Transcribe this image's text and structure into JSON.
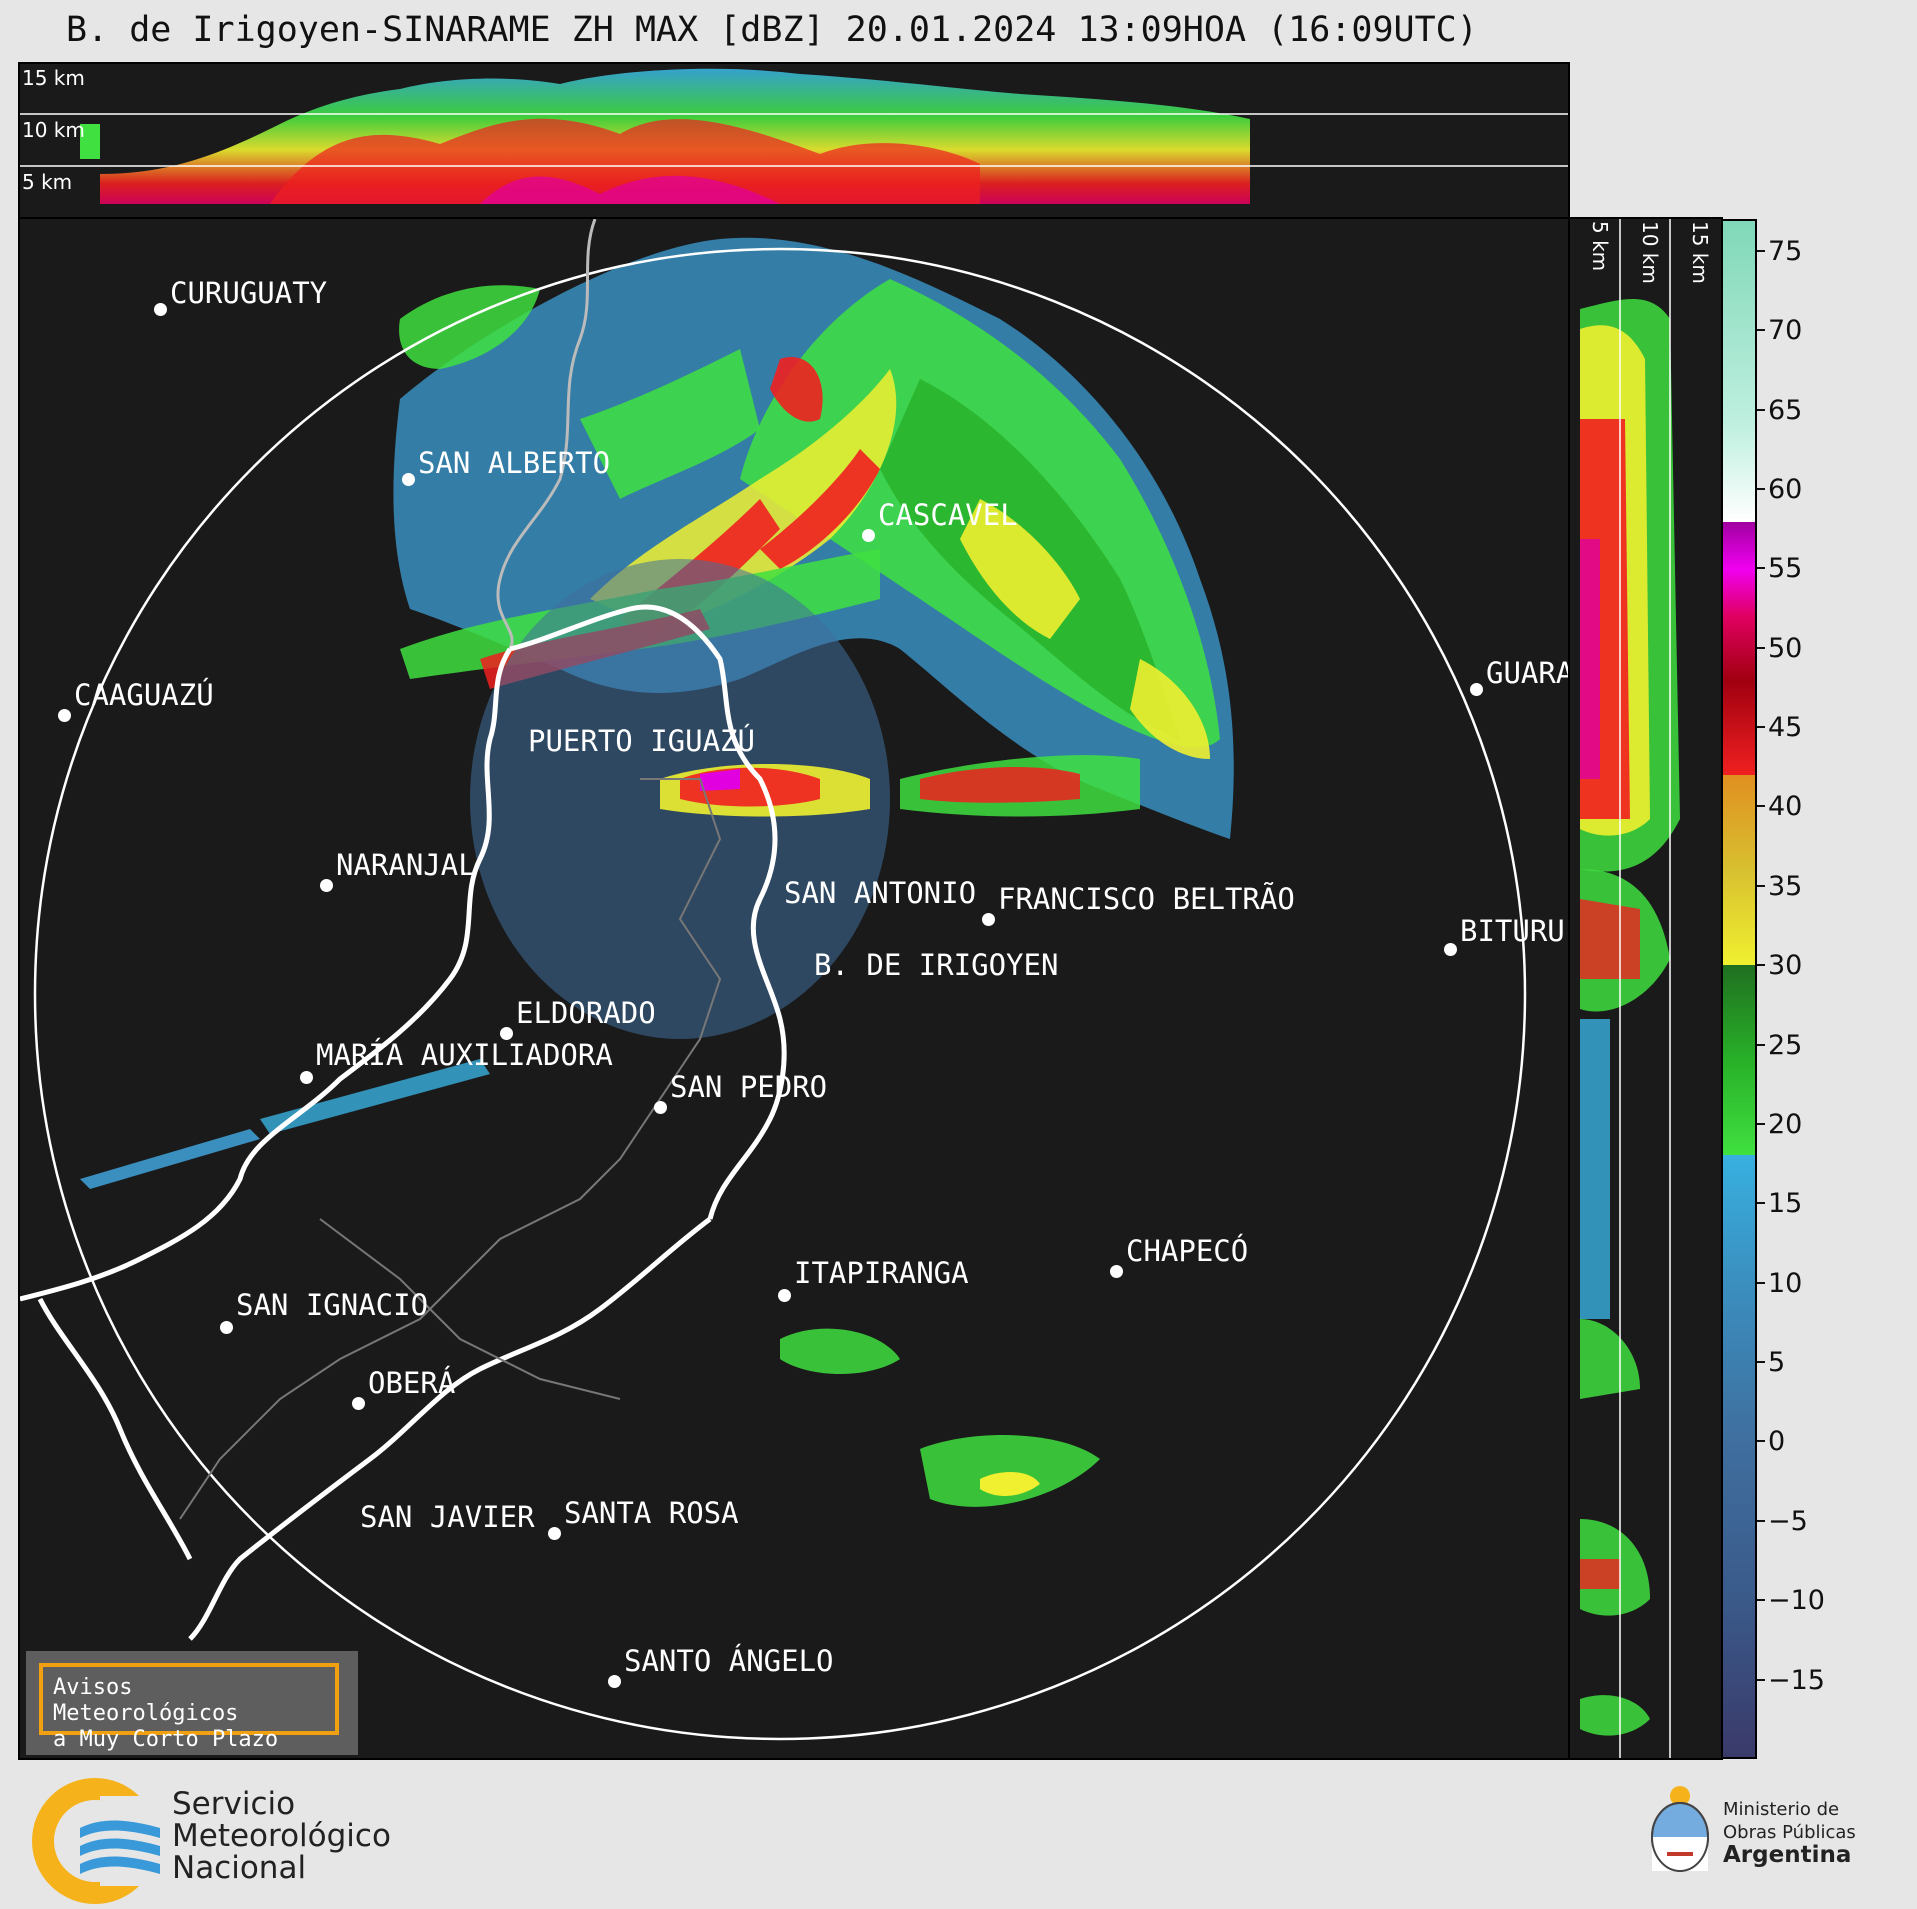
{
  "title": "B. de Irigoyen-SINARAME ZH MAX [dBZ] 20.01.2024 13:09HOA (16:09UTC)",
  "top_panel": {
    "height_labels": [
      "15 km",
      "10 km",
      "5 km"
    ]
  },
  "side_panel": {
    "height_labels": [
      "5 km",
      "10 km",
      "15 km"
    ]
  },
  "cities": [
    {
      "name": "CURUGUATY"
    },
    {
      "name": "SAN ALBERTO"
    },
    {
      "name": "CAAGUAZÚ"
    },
    {
      "name": "PUERTO IGUAZÚ"
    },
    {
      "name": "CASCAVEL"
    },
    {
      "name": "GUARA"
    },
    {
      "name": "NARANJAL"
    },
    {
      "name": "SAN ANTONIO"
    },
    {
      "name": "FRANCISCO BELTRÃO"
    },
    {
      "name": "BITURU"
    },
    {
      "name": "B. DE IRIGOYEN"
    },
    {
      "name": "ELDORADO"
    },
    {
      "name": "MARÍA AUXILIADORA"
    },
    {
      "name": "SAN PEDRO"
    },
    {
      "name": "ITAPIRANGA"
    },
    {
      "name": "CHAPECÓ"
    },
    {
      "name": "SAN IGNACIO"
    },
    {
      "name": "OBERÁ"
    },
    {
      "name": "SAN JAVIER"
    },
    {
      "name": "SANTA ROSA"
    },
    {
      "name": "SANTO ÁNGELO"
    }
  ],
  "colorbar": {
    "unit": "dBZ",
    "range": [
      -20,
      77
    ],
    "ticks": [
      "75",
      "70",
      "65",
      "60",
      "55",
      "50",
      "45",
      "40",
      "35",
      "30",
      "25",
      "20",
      "15",
      "10",
      "5",
      "0",
      "−5",
      "−10",
      "−15"
    ],
    "stops": [
      {
        "v": -20,
        "c": "#3a3a6a"
      },
      {
        "v": -10,
        "c": "#3a5a8a"
      },
      {
        "v": 0,
        "c": "#3f6f9f"
      },
      {
        "v": 10,
        "c": "#3a8fbf"
      },
      {
        "v": 18,
        "c": "#38b0e0"
      },
      {
        "v": 18.01,
        "c": "#40e040"
      },
      {
        "v": 24,
        "c": "#28b028"
      },
      {
        "v": 30,
        "c": "#206f20"
      },
      {
        "v": 30.01,
        "c": "#f0f030"
      },
      {
        "v": 36,
        "c": "#d8c030"
      },
      {
        "v": 42,
        "c": "#e09020"
      },
      {
        "v": 42.01,
        "c": "#f02020"
      },
      {
        "v": 48,
        "c": "#a00010"
      },
      {
        "v": 52,
        "c": "#e00060"
      },
      {
        "v": 55,
        "c": "#f000f0"
      },
      {
        "v": 58,
        "c": "#a000a0"
      },
      {
        "v": 58.01,
        "c": "#ffffff"
      },
      {
        "v": 64,
        "c": "#c0f0e0"
      },
      {
        "v": 77,
        "c": "#80d8b8"
      }
    ]
  },
  "warning_box": {
    "line1": "Avisos Meteorológicos",
    "line2": "a Muy Corto Plazo"
  },
  "smn_logo": {
    "line1": "Servicio",
    "line2": "Meteorológico",
    "line3": "Nacional"
  },
  "ministry_logo": {
    "line1": "Ministerio de",
    "line2": "Obras Públicas",
    "line3": "Argentina"
  }
}
